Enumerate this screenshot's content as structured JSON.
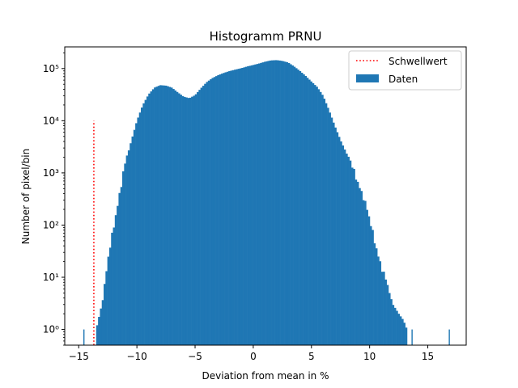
{
  "chart_data": {
    "type": "bar",
    "title": "Histogramm PRNU",
    "xlabel": "Deviation from mean in %",
    "ylabel": "Number of pixel/bin",
    "xlim": [
      -16.2,
      18.3
    ],
    "ylim": [
      0.5,
      260000
    ],
    "y_scale": "log",
    "grid": false,
    "legend_position": "top-right",
    "x_ticks": [
      -15,
      -10,
      -5,
      0,
      5,
      10,
      15
    ],
    "x_tick_labels": [
      "−15",
      "−10",
      "−5",
      "0",
      "5",
      "10",
      "15"
    ],
    "y_ticks": [
      1,
      10,
      100,
      1000,
      10000,
      100000
    ],
    "y_tick_labels": [
      "10⁰",
      "10¹",
      "10²",
      "10³",
      "10⁴",
      "10⁵"
    ],
    "bin_width": 0.16,
    "histogram": {
      "name": "Daten",
      "color": "#1f77b4",
      "profile": [
        [
          -13.5,
          1
        ],
        [
          -12.9,
          4
        ],
        [
          -12.5,
          20
        ],
        [
          -12.0,
          100
        ],
        [
          -11.5,
          400
        ],
        [
          -11.0,
          1500
        ],
        [
          -10.5,
          4000
        ],
        [
          -10.0,
          10000
        ],
        [
          -9.5,
          20000
        ],
        [
          -9.0,
          32000
        ],
        [
          -8.5,
          43000
        ],
        [
          -8.0,
          48000
        ],
        [
          -7.5,
          47000
        ],
        [
          -7.0,
          43000
        ],
        [
          -6.5,
          35000
        ],
        [
          -6.0,
          29000
        ],
        [
          -5.5,
          27000
        ],
        [
          -5.0,
          31000
        ],
        [
          -4.5,
          42000
        ],
        [
          -4.0,
          55000
        ],
        [
          -3.5,
          66000
        ],
        [
          -3.0,
          75000
        ],
        [
          -2.5,
          83000
        ],
        [
          -2.0,
          90000
        ],
        [
          -1.5,
          96000
        ],
        [
          -1.0,
          102000
        ],
        [
          -0.5,
          110000
        ],
        [
          0.0,
          117000
        ],
        [
          0.5,
          125000
        ],
        [
          1.0,
          135000
        ],
        [
          1.5,
          143000
        ],
        [
          2.0,
          145000
        ],
        [
          2.5,
          140000
        ],
        [
          3.0,
          130000
        ],
        [
          3.5,
          110000
        ],
        [
          4.0,
          90000
        ],
        [
          4.5,
          72000
        ],
        [
          5.0,
          56000
        ],
        [
          5.5,
          44000
        ],
        [
          6.0,
          30000
        ],
        [
          6.5,
          16000
        ],
        [
          7.0,
          8000
        ],
        [
          7.5,
          4200
        ],
        [
          8.0,
          2400
        ],
        [
          8.5,
          1300
        ],
        [
          9.0,
          700
        ],
        [
          9.5,
          320
        ],
        [
          10.0,
          120
        ],
        [
          10.5,
          45
        ],
        [
          11.0,
          16
        ],
        [
          11.5,
          7
        ],
        [
          12.0,
          3
        ],
        [
          12.5,
          2
        ],
        [
          12.9,
          1.5
        ],
        [
          13.2,
          1
        ]
      ],
      "outliers": [
        [
          -14.6,
          1
        ],
        [
          -13.4,
          1
        ],
        [
          -13.2,
          1
        ],
        [
          13.6,
          1
        ],
        [
          16.8,
          1
        ]
      ]
    },
    "threshold": {
      "name": "Schwellwert",
      "color": "#ff0000",
      "x": -13.7,
      "y_top": 10000
    },
    "legend": [
      {
        "label": "Schwellwert",
        "kind": "dotted-line",
        "color": "#ff0000"
      },
      {
        "label": "Daten",
        "kind": "patch",
        "color": "#1f77b4"
      }
    ]
  }
}
